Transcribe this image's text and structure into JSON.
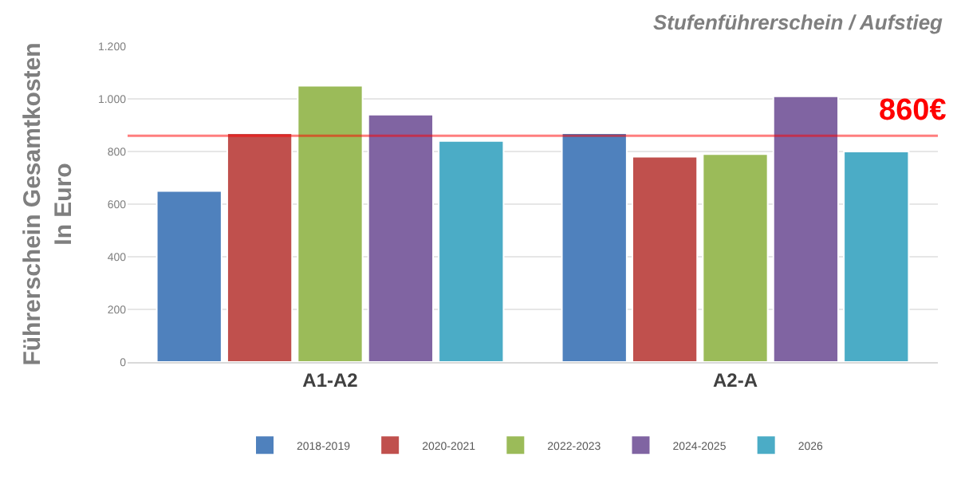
{
  "chart_data": {
    "type": "bar",
    "title": "Stufenführerschein / Aufstieg",
    "ylabel": "Führerschein Gesamtkosten\nIn Euro",
    "categories": [
      "A1-A2",
      "A2-A"
    ],
    "series": [
      {
        "name": "2018-2019",
        "color": "#4f81bd",
        "values": [
          650,
          870
        ]
      },
      {
        "name": "2020-2021",
        "color": "#c0504d",
        "values": [
          870,
          780
        ]
      },
      {
        "name": "2022-2023",
        "color": "#9bbb59",
        "values": [
          1050,
          790
        ]
      },
      {
        "name": "2024-2025",
        "color": "#8064a2",
        "values": [
          940,
          1010
        ]
      },
      {
        "name": "2026",
        "color": "#4bacc6",
        "values": [
          840,
          800
        ]
      }
    ],
    "ylim": [
      0,
      1200
    ],
    "yticks": [
      0,
      200,
      400,
      600,
      800,
      {
        "value": 1000,
        "label": "1.000"
      },
      {
        "value": 1200,
        "label": "1.200"
      }
    ],
    "ref_lines": [
      {
        "axis": "y",
        "value": 860,
        "label": "860€",
        "color": "#ff0000"
      }
    ],
    "grid": "y",
    "legend": "bottom"
  }
}
